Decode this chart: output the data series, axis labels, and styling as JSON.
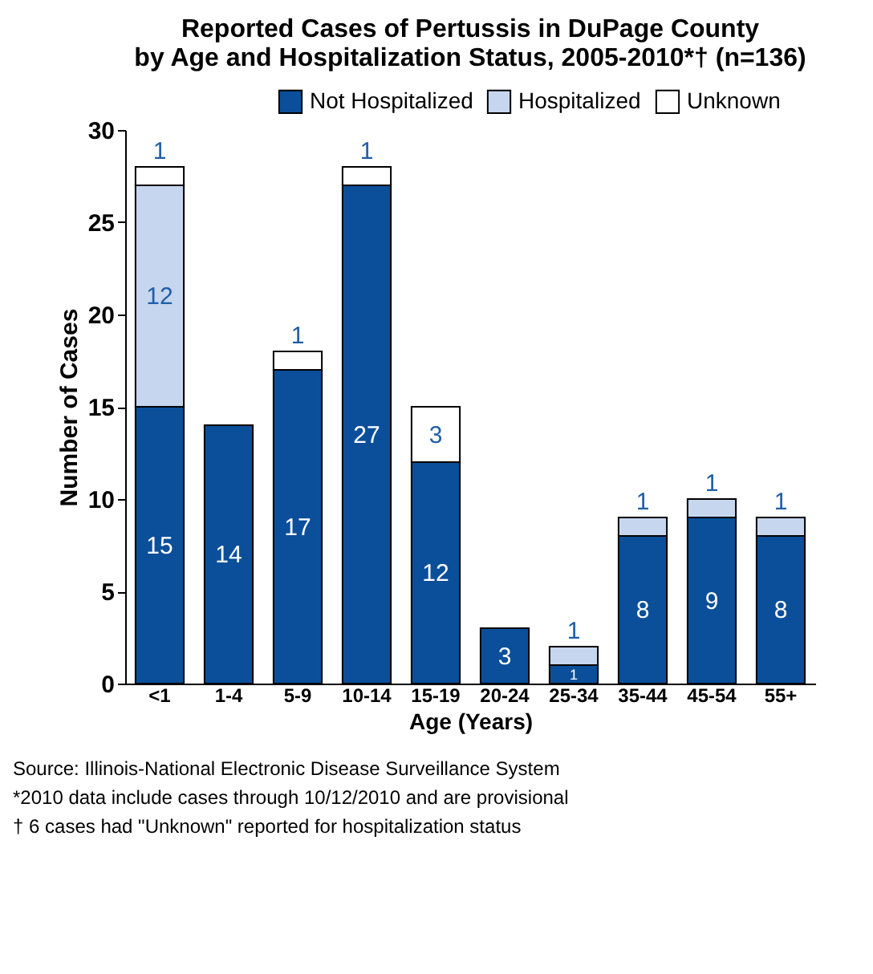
{
  "chart_data": {
    "type": "bar",
    "stacked": true,
    "title": [
      "Reported Cases of Pertussis in DuPage County",
      "by Age and Hospitalization Status, 2005-2010*† (n=136)"
    ],
    "xlabel": "Age (Years)",
    "ylabel": "Number of Cases",
    "categories": [
      "<1",
      "1-4",
      "5-9",
      "10-14",
      "15-19",
      "20-24",
      "25-34",
      "35-44",
      "45-54",
      "55+"
    ],
    "series": [
      {
        "name": "Not Hospitalized",
        "color": "#0b4f9a",
        "values": [
          15,
          14,
          17,
          27,
          12,
          3,
          1,
          8,
          9,
          8
        ]
      },
      {
        "name": "Hospitalized",
        "color": "#c6d6ee",
        "values": [
          12,
          null,
          null,
          null,
          null,
          null,
          1,
          1,
          1,
          1
        ]
      },
      {
        "name": "Unknown",
        "color": "#ffffff",
        "values": [
          1,
          null,
          1,
          1,
          3,
          null,
          null,
          null,
          null,
          null
        ]
      }
    ],
    "ylim": [
      0,
      30
    ],
    "yticks": [
      0,
      5,
      10,
      15,
      20,
      25,
      30
    ],
    "grid": false,
    "legend": "top",
    "data_labels": true,
    "annotations": [
      "Source: Illinois-National Electronic Disease Surveillance System",
      "*2010 data include cases through 10/12/2010 and are provisional",
      "† 6 cases had \"Unknown\" reported for hospitalization status"
    ]
  }
}
